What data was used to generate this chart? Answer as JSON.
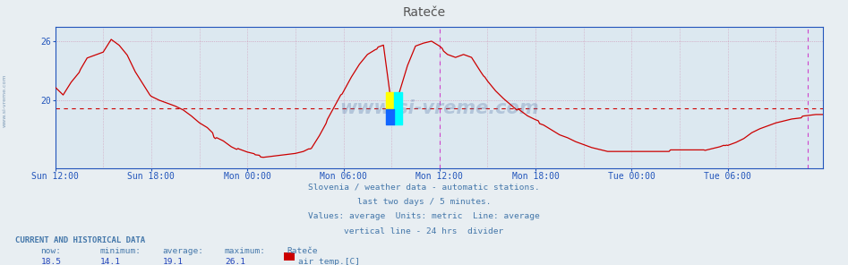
{
  "title": "Rateče",
  "bg_color": "#e8eef2",
  "plot_bg_color": "#dce8f0",
  "line_color": "#cc0000",
  "grid_color_h": "#cc88aa",
  "grid_color_v": "#cc88aa",
  "avg_line_color": "#cc0000",
  "vline_color": "#cc44cc",
  "axis_color": "#2255bb",
  "text_color": "#4477aa",
  "title_color": "#555555",
  "watermark": "www.si-vreme.com",
  "watermark_color": "#5577aa",
  "subtitle_lines": [
    "Slovenia / weather data - automatic stations.",
    "last two days / 5 minutes.",
    "Values: average  Units: metric  Line: average",
    "vertical line - 24 hrs  divider"
  ],
  "current_data_header": "CURRENT AND HISTORICAL DATA",
  "stats_labels": [
    "now:",
    "minimum:",
    "average:",
    "maximum:",
    "Rateče"
  ],
  "stats_values": [
    "18.5",
    "14.1",
    "19.1",
    "26.1"
  ],
  "legend_label": "air temp.[C]",
  "legend_color": "#cc0000",
  "x_tick_labels": [
    "Sun 12:00",
    "Sun 18:00",
    "Mon 00:00",
    "Mon 06:00",
    "Mon 12:00",
    "Mon 18:00",
    "Tue 00:00",
    "Tue 06:00"
  ],
  "yticks": [
    20,
    26
  ],
  "ylim": [
    13.0,
    27.5
  ],
  "average_value": 19.1,
  "n_points": 576,
  "vline1_idx": 288,
  "vline2_idx": 564,
  "marker_idx": 252,
  "control_points": [
    [
      0,
      21.3
    ],
    [
      6,
      20.5
    ],
    [
      12,
      21.8
    ],
    [
      18,
      22.8
    ],
    [
      24,
      24.2
    ],
    [
      30,
      24.5
    ],
    [
      36,
      24.8
    ],
    [
      42,
      26.1
    ],
    [
      48,
      25.5
    ],
    [
      54,
      24.5
    ],
    [
      60,
      22.8
    ],
    [
      66,
      21.5
    ],
    [
      72,
      20.2
    ],
    [
      78,
      19.8
    ],
    [
      84,
      19.5
    ],
    [
      90,
      19.2
    ],
    [
      96,
      18.8
    ],
    [
      102,
      18.2
    ],
    [
      108,
      17.5
    ],
    [
      114,
      17.0
    ],
    [
      120,
      16.2
    ],
    [
      126,
      15.8
    ],
    [
      132,
      15.2
    ],
    [
      138,
      14.8
    ],
    [
      144,
      14.5
    ],
    [
      150,
      14.3
    ],
    [
      156,
      14.2
    ],
    [
      162,
      14.3
    ],
    [
      168,
      14.4
    ],
    [
      174,
      14.5
    ],
    [
      180,
      14.6
    ],
    [
      186,
      14.8
    ],
    [
      192,
      15.2
    ],
    [
      198,
      16.5
    ],
    [
      204,
      18.0
    ],
    [
      210,
      19.5
    ],
    [
      216,
      21.0
    ],
    [
      222,
      22.5
    ],
    [
      228,
      23.8
    ],
    [
      234,
      24.8
    ],
    [
      240,
      25.3
    ],
    [
      246,
      25.6
    ],
    [
      252,
      19.5
    ],
    [
      258,
      20.8
    ],
    [
      264,
      23.5
    ],
    [
      270,
      25.5
    ],
    [
      276,
      25.8
    ],
    [
      282,
      26.0
    ],
    [
      288,
      25.5
    ],
    [
      294,
      24.8
    ],
    [
      300,
      24.5
    ],
    [
      306,
      24.8
    ],
    [
      312,
      24.5
    ],
    [
      318,
      23.2
    ],
    [
      324,
      22.0
    ],
    [
      330,
      21.0
    ],
    [
      336,
      20.2
    ],
    [
      342,
      19.5
    ],
    [
      348,
      18.8
    ],
    [
      354,
      18.2
    ],
    [
      360,
      17.8
    ],
    [
      366,
      17.5
    ],
    [
      372,
      17.0
    ],
    [
      378,
      16.5
    ],
    [
      384,
      16.2
    ],
    [
      390,
      15.8
    ],
    [
      396,
      15.5
    ],
    [
      402,
      15.2
    ],
    [
      408,
      15.0
    ],
    [
      414,
      14.8
    ],
    [
      420,
      14.8
    ],
    [
      426,
      14.8
    ],
    [
      432,
      14.8
    ],
    [
      438,
      14.8
    ],
    [
      444,
      14.8
    ],
    [
      450,
      14.8
    ],
    [
      456,
      14.8
    ],
    [
      462,
      14.8
    ],
    [
      468,
      14.8
    ],
    [
      474,
      14.8
    ],
    [
      480,
      14.8
    ],
    [
      486,
      14.8
    ],
    [
      492,
      15.0
    ],
    [
      498,
      15.2
    ],
    [
      504,
      15.5
    ],
    [
      510,
      15.8
    ],
    [
      516,
      16.2
    ],
    [
      522,
      16.8
    ],
    [
      528,
      17.2
    ],
    [
      534,
      17.5
    ],
    [
      540,
      17.8
    ],
    [
      546,
      18.0
    ],
    [
      552,
      18.2
    ],
    [
      558,
      18.3
    ],
    [
      564,
      18.4
    ],
    [
      570,
      18.5
    ],
    [
      575,
      18.5
    ]
  ]
}
